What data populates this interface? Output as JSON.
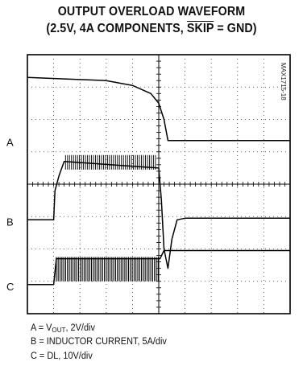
{
  "title_line1": "OUTPUT OVERLOAD WAVEFORM",
  "title_line2_pre": "(2.5V, 4A COMPONENTS, ",
  "title_line2_skip": "SKIP",
  "title_line2_post": " = GND)",
  "figure_code": "MAX1715-18",
  "channel_labels": [
    "A",
    "B",
    "C"
  ],
  "legend": {
    "a_pre": "A = V",
    "a_sub": "OUT",
    "a_post": ", 2V/div",
    "b": "B = INDUCTOR CURRENT, 5A/div",
    "c": "C = DL, 10V/div"
  },
  "chart_data": {
    "type": "line",
    "title": "OUTPUT OVERLOAD WAVEFORM (2.5V, 4A COMPONENTS, SKIP = GND)",
    "grid": true,
    "divisions": {
      "x": 10,
      "y": 8
    },
    "xlim": [
      0,
      10
    ],
    "ylim": [
      0,
      8
    ],
    "series": [
      {
        "name": "A",
        "scale": "2V/div",
        "x": [
          0,
          1.5,
          3.0,
          4.0,
          4.7,
          5.0,
          5.2,
          5.35,
          5.6,
          10
        ],
        "y": [
          7.3,
          7.25,
          7.2,
          7.05,
          6.8,
          6.5,
          6.0,
          5.35,
          5.35,
          5.35
        ]
      },
      {
        "name": "B",
        "scale": "5A/div",
        "x": [
          0,
          1.0,
          1.05,
          1.2,
          1.4,
          5.0,
          5.1,
          5.2,
          5.35,
          5.5,
          5.7,
          6.0,
          10
        ],
        "y": [
          2.9,
          2.9,
          3.8,
          4.25,
          4.7,
          4.5,
          3.5,
          2.0,
          1.4,
          2.3,
          2.9,
          2.95,
          2.95
        ]
      },
      {
        "name": "C",
        "scale": "10V/div",
        "x": [
          0,
          1.0,
          1.1,
          5.05,
          5.2,
          10
        ],
        "y": [
          0.9,
          0.9,
          1.7,
          1.7,
          1.95,
          1.95
        ],
        "switching_region": [
          1.1,
          5.05
        ]
      }
    ]
  }
}
